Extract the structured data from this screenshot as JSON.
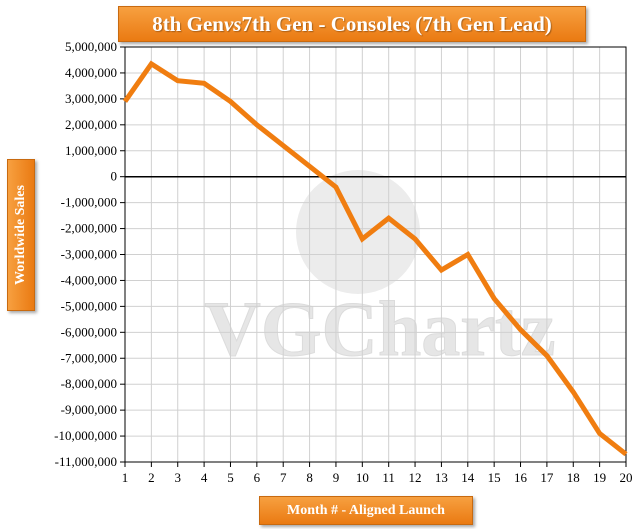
{
  "chart_data": {
    "type": "line",
    "title_part1": "8th Gen ",
    "title_italic": "vs",
    "title_part2": " 7th Gen - Consoles (7th Gen Lead)",
    "xlabel": "Month # - Aligned Launch",
    "ylabel": "Worldwide Sales",
    "watermark": "VGChartz",
    "ylim": [
      -11000000,
      5000000
    ],
    "ytick_step": 1000000,
    "yticks": [
      5000000,
      4000000,
      3000000,
      2000000,
      1000000,
      0,
      -1000000,
      -2000000,
      -3000000,
      -4000000,
      -5000000,
      -6000000,
      -7000000,
      -8000000,
      -9000000,
      -10000000,
      -11000000
    ],
    "ytick_labels": [
      "5,000,000",
      "4,000,000",
      "3,000,000",
      "2,000,000",
      "1,000,000",
      "0",
      "-1,000,000",
      "-2,000,000",
      "-3,000,000",
      "-4,000,000",
      "-5,000,000",
      "-6,000,000",
      "-7,000,000",
      "-8,000,000",
      "-9,000,000",
      "-10,000,000",
      "-11,000,000"
    ],
    "x": [
      1,
      2,
      3,
      4,
      5,
      6,
      7,
      8,
      9,
      10,
      11,
      12,
      13,
      14,
      15,
      16,
      17,
      18,
      19,
      20
    ],
    "series": [
      {
        "values": [
          2900000,
          4350000,
          3700000,
          3600000,
          2900000,
          2000000,
          1200000,
          400000,
          -400000,
          -2400000,
          -1600000,
          -2400000,
          -3600000,
          -3000000,
          -4700000,
          -5900000,
          -6900000,
          -8300000,
          -9900000,
          -10700000
        ],
        "color": "#f07d10"
      }
    ],
    "grid": true,
    "zero_line": true,
    "legend": "none",
    "colors": {
      "accent": "#f07d10",
      "grid": "#d0d0d0"
    }
  }
}
